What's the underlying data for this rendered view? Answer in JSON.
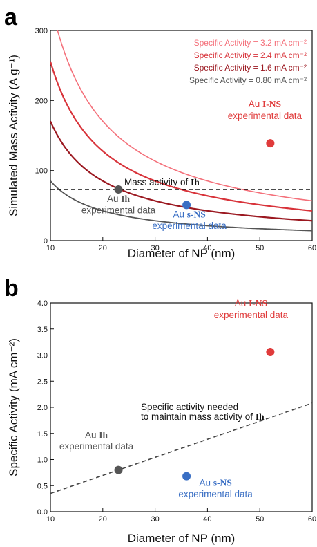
{
  "chart_data": [
    {
      "panel": "a",
      "type": "line",
      "xlabel": "Diameter of NP (nm)",
      "ylabel": "Simulated Mass Activity (A g⁻¹)",
      "xlim": [
        10,
        60
      ],
      "ylim": [
        0,
        300
      ],
      "xticks": [
        10,
        20,
        30,
        40,
        50,
        60
      ],
      "yticks": [
        0,
        100,
        200,
        300
      ],
      "grid": false,
      "legend_position": "top-right",
      "series": [
        {
          "name": "Specific Activity = 3.2 mA cm⁻²",
          "specific_activity": 3.2,
          "color": "#f4707a",
          "width": 1.6
        },
        {
          "name": "Specific Activity = 2.4 mA cm⁻²",
          "specific_activity": 2.4,
          "color": "#d8333a",
          "width": 2.2
        },
        {
          "name": "Specific Activity = 1.6 mA cm⁻²",
          "specific_activity": 1.6,
          "color": "#9b1820",
          "width": 2.2
        },
        {
          "name": "Specific Activity = 0.80 mA cm⁻²",
          "specific_activity": 0.8,
          "color": "#555555",
          "width": 1.8
        }
      ],
      "curve_constant": 1065,
      "reference_line": {
        "y": 73,
        "label_prefix": "Mass activity of ",
        "label_bold": "Ih"
      },
      "points": [
        {
          "x": 23,
          "y": 73,
          "color": "#555555",
          "label_lines": [
            [
              "Au ",
              "Ih"
            ],
            [
              "experimental data"
            ]
          ]
        },
        {
          "x": 36,
          "y": 51,
          "color": "#3a6fc4",
          "label_lines": [
            [
              "Au ",
              "s-NS"
            ],
            [
              "experimental data"
            ]
          ]
        },
        {
          "x": 52,
          "y": 139,
          "color": "#e03b3b",
          "label_lines": [
            [
              "Au ",
              "I-NS"
            ],
            [
              "experimental data"
            ]
          ]
        }
      ]
    },
    {
      "panel": "b",
      "type": "scatter",
      "xlabel": "Diameter of NP (nm)",
      "ylabel": "Specific Activity (mA cm⁻²)",
      "xlim": [
        10,
        60
      ],
      "ylim": [
        0.0,
        4.0
      ],
      "xticks": [
        10,
        20,
        30,
        40,
        50,
        60
      ],
      "yticks": [
        "0.0",
        "0.5",
        "1.0",
        "1.5",
        "2.0",
        "2.5",
        "3.0",
        "3.5",
        "4.0"
      ],
      "grid": false,
      "trend_line": {
        "x": [
          10,
          60
        ],
        "y": [
          0.35,
          2.08
        ],
        "label_lines": [
          [
            "Specific activity needed"
          ],
          [
            "to maintain mass activity of ",
            "Ih"
          ]
        ]
      },
      "points": [
        {
          "x": 23,
          "y": 0.8,
          "color": "#555555",
          "label_lines": [
            [
              "Au ",
              "Ih"
            ],
            [
              "experimental data"
            ]
          ]
        },
        {
          "x": 36,
          "y": 0.68,
          "color": "#3a6fc4",
          "label_lines": [
            [
              "Au ",
              "s-NS"
            ],
            [
              "experimental data"
            ]
          ]
        },
        {
          "x": 52,
          "y": 3.06,
          "color": "#e03b3b",
          "label_lines": [
            [
              "Au ",
              "I-NS"
            ],
            [
              "experimental data"
            ]
          ]
        }
      ]
    }
  ],
  "panel_labels": [
    "a",
    "b"
  ]
}
